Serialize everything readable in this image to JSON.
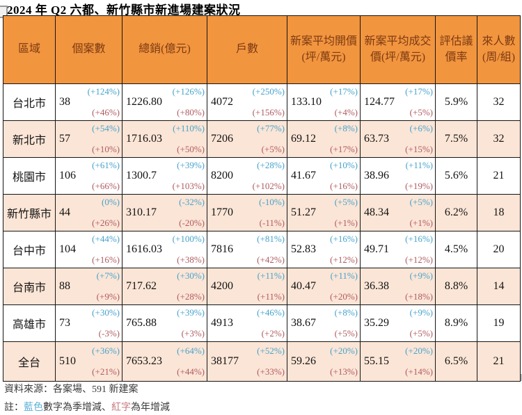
{
  "title": "2024 年 Q2 六都、新竹縣市新進場建案狀況",
  "colors": {
    "header_bg": "#F2953F",
    "header_text": "#7B3A12",
    "band_bg": "#FBE5D6",
    "qoq_blue": "#46A3CD",
    "yoy_red": "#B05A5F",
    "border": "#141414"
  },
  "table": {
    "columns": [
      "區域",
      "個案數",
      "總銷(億元)",
      "戶數",
      "新案平均開價(坪/萬元)",
      "新案平均成交價(坪/萬元)",
      "評估議價率",
      "來人數(周/組)"
    ],
    "rows": [
      {
        "region": "台北市",
        "metrics": [
          {
            "v": "38",
            "q": "(+124%)",
            "y": "(+46%)"
          },
          {
            "v": "1226.80",
            "q": "(+126%)",
            "y": "(+80%)"
          },
          {
            "v": "4072",
            "q": "(+250%)",
            "y": "(+156%)"
          },
          {
            "v": "133.10",
            "q": "(+17%)",
            "y": "(+4%)"
          },
          {
            "v": "124.77",
            "q": "(+17%)",
            "y": "(+5%)"
          }
        ],
        "rate": "5.9%",
        "visitors": "32"
      },
      {
        "region": "新北市",
        "metrics": [
          {
            "v": "57",
            "q": "(+54%)",
            "y": "(+10%)"
          },
          {
            "v": "1716.03",
            "q": "(+110%)",
            "y": "(+50%)"
          },
          {
            "v": "7206",
            "q": "(+77%)",
            "y": "(+5%)"
          },
          {
            "v": "69.12",
            "q": "(+8%)",
            "y": "(+17%)"
          },
          {
            "v": "63.73",
            "q": "(+6%)",
            "y": "(+15%)"
          }
        ],
        "rate": "7.5%",
        "visitors": "32"
      },
      {
        "region": "桃園市",
        "metrics": [
          {
            "v": "106",
            "q": "(+61%)",
            "y": "(+66%)"
          },
          {
            "v": "1300.7",
            "q": "(+39%)",
            "y": "(+103%)"
          },
          {
            "v": "8200",
            "q": "(+28%)",
            "y": "(+102%)"
          },
          {
            "v": "41.67",
            "q": "(+10%)",
            "y": "(+16%)"
          },
          {
            "v": "38.96",
            "q": "(+11%)",
            "y": "(+19%)"
          }
        ],
        "rate": "5.6%",
        "visitors": "21"
      },
      {
        "region": "新竹縣市",
        "metrics": [
          {
            "v": "44",
            "q": "(0%)",
            "y": "(+26%)"
          },
          {
            "v": "310.17",
            "q": "(-32%)",
            "y": "(-20%)"
          },
          {
            "v": "1770",
            "q": "(-10%)",
            "y": "(-11%)"
          },
          {
            "v": "51.27",
            "q": "(+5%)",
            "y": "(+1%)"
          },
          {
            "v": "48.34",
            "q": "(+5%)",
            "y": "(+1%)"
          }
        ],
        "rate": "6.2%",
        "visitors": "18"
      },
      {
        "region": "台中市",
        "metrics": [
          {
            "v": "104",
            "q": "(+44%)",
            "y": "(+16%)"
          },
          {
            "v": "1616.03",
            "q": "(+100%)",
            "y": "(+38%)"
          },
          {
            "v": "7816",
            "q": "(+81%)",
            "y": "(+42%)"
          },
          {
            "v": "52.83",
            "q": "(+16%)",
            "y": "(+12%)"
          },
          {
            "v": "49.71",
            "q": "(+16%)",
            "y": "(+12%)"
          }
        ],
        "rate": "4.5%",
        "visitors": "20"
      },
      {
        "region": "台南市",
        "metrics": [
          {
            "v": "88",
            "q": "(+7%)",
            "y": "(+9%)"
          },
          {
            "v": "717.62",
            "q": "(+30%)",
            "y": "(+28%)"
          },
          {
            "v": "4200",
            "q": "(+11%)",
            "y": "(+11%)"
          },
          {
            "v": "40.47",
            "q": "(+11%)",
            "y": "(+20%)"
          },
          {
            "v": "36.38",
            "q": "(+9%)",
            "y": "(+18%)"
          }
        ],
        "rate": "8.8%",
        "visitors": "14"
      },
      {
        "region": "高雄市",
        "metrics": [
          {
            "v": "73",
            "q": "(+30%)",
            "y": "(-3%)"
          },
          {
            "v": "765.88",
            "q": "(+39%)",
            "y": "(+3%)"
          },
          {
            "v": "4913",
            "q": "(+46%)",
            "y": "(+2%)"
          },
          {
            "v": "38.67",
            "q": "(+8%)",
            "y": "(+5%)"
          },
          {
            "v": "35.29",
            "q": "(+9%)",
            "y": "(+5%)"
          }
        ],
        "rate": "8.9%",
        "visitors": "19"
      },
      {
        "region": "全台",
        "metrics": [
          {
            "v": "510",
            "q": "(+36%)",
            "y": "(+21%)"
          },
          {
            "v": "7653.23",
            "q": "(+64%)",
            "y": "(+44%)"
          },
          {
            "v": "38177",
            "q": "(+52%)",
            "y": "(+33%)"
          },
          {
            "v": "59.26",
            "q": "(+20%)",
            "y": "(+13%)"
          },
          {
            "v": "55.15",
            "q": "(+20%)",
            "y": "(+14%)"
          }
        ],
        "rate": "6.5%",
        "visitors": "21"
      }
    ]
  },
  "footer": {
    "source": "資料來源：各案場、591 新建案",
    "note_prefix": "註：",
    "note_blue": "藍色",
    "note_mid": "數字為季增減、",
    "note_red": "紅字",
    "note_suffix": "為年增減"
  }
}
